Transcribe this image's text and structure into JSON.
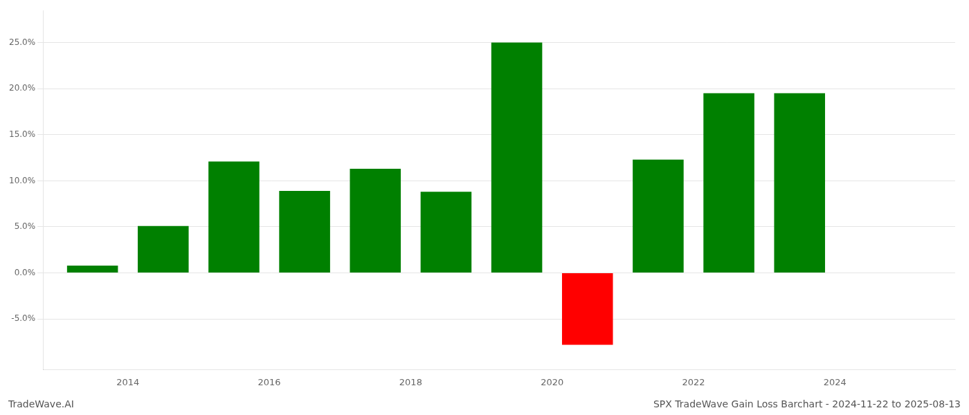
{
  "chart_data": {
    "type": "bar",
    "title": "SPX TradeWave Gain Loss Barchart - 2024-11-22 to 2025-08-13",
    "annotations": [
      "TradeWave.AI"
    ],
    "x": [
      2013,
      2014,
      2015,
      2016,
      2017,
      2018,
      2019,
      2020,
      2021,
      2022,
      2023
    ],
    "values": [
      0.008,
      0.051,
      0.121,
      0.089,
      0.113,
      0.088,
      0.25,
      -0.078,
      0.123,
      0.195,
      0.195
    ],
    "colors": [
      "#008000",
      "#008000",
      "#008000",
      "#008000",
      "#008000",
      "#008000",
      "#008000",
      "#ff0000",
      "#008000",
      "#008000",
      "#008000"
    ],
    "xlim": [
      2012.3,
      2025.2
    ],
    "xticks": [
      {
        "value": 2013.5,
        "label": "2014"
      },
      {
        "value": 2015.5,
        "label": "2016"
      },
      {
        "value": 2017.5,
        "label": "2018"
      },
      {
        "value": 2019.5,
        "label": "2020"
      },
      {
        "value": 2021.5,
        "label": "2022"
      },
      {
        "value": 2023.5,
        "label": "2024"
      }
    ],
    "ylim": [
      -0.105,
      0.285
    ],
    "yticks": [
      {
        "value": -0.05,
        "label": "-5.0%"
      },
      {
        "value": 0.0,
        "label": "0.0%"
      },
      {
        "value": 0.05,
        "label": "5.0%"
      },
      {
        "value": 0.1,
        "label": "10.0%"
      },
      {
        "value": 0.15,
        "label": "15.0%"
      },
      {
        "value": 0.2,
        "label": "20.0%"
      },
      {
        "value": 0.25,
        "label": "25.0%"
      }
    ],
    "grid": "y"
  }
}
